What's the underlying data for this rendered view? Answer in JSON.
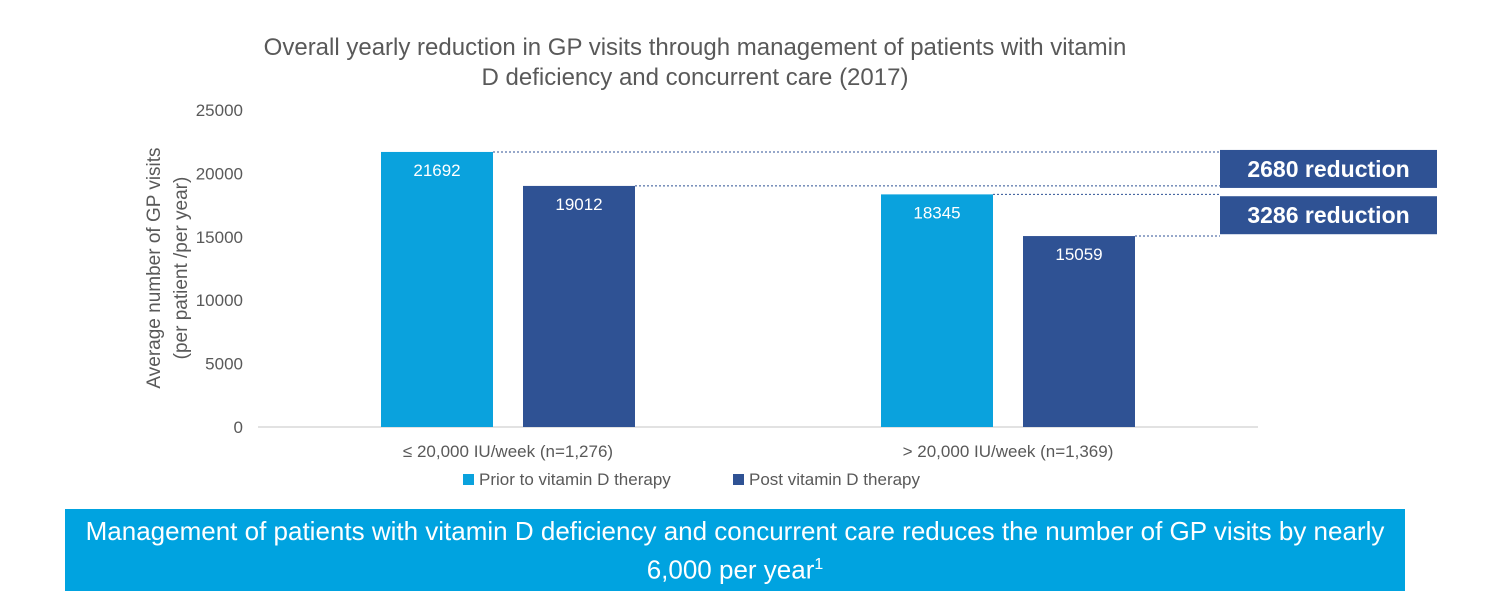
{
  "chart_data": {
    "type": "bar",
    "title": "Overall yearly reduction in GP visits through management of patients with vitamin D deficiency and concurrent care (2017)",
    "title_lines": [
      "Overall yearly reduction in GP visits through management of patients with vitamin",
      "D deficiency and concurrent care (2017)"
    ],
    "ylabel": "Average number of GP visits (per patient /per year)",
    "ylabel_lines": [
      "Average number of GP visits",
      "(per patient /per year)"
    ],
    "xlabel": "",
    "ylim": [
      0,
      25000
    ],
    "yticks": [
      0,
      5000,
      10000,
      15000,
      20000,
      25000
    ],
    "categories": [
      "≤ 20,000 IU/week (n=1,276)",
      "> 20,000 IU/week (n=1,369)"
    ],
    "series": [
      {
        "name": "Prior to vitamin D therapy",
        "values": [
          21692,
          18345
        ],
        "color": "#0aa2dd"
      },
      {
        "name": "Post vitamin D therapy",
        "values": [
          19012,
          15059
        ],
        "color": "#2f5294"
      }
    ],
    "data_labels": true,
    "grid": false,
    "legend": "bottom-center",
    "annotations": [
      {
        "text": "2680 reduction",
        "from": 21692,
        "to": 19012
      },
      {
        "text": "3286 reduction",
        "from": 18345,
        "to": 15059
      }
    ],
    "callout_color": "#2f5294"
  },
  "banner": {
    "text": "Management of patients with vitamin D deficiency and concurrent care reduces the number of GP visits by nearly 6,000 per year",
    "superscript": "1",
    "color": "#00a3e0"
  }
}
